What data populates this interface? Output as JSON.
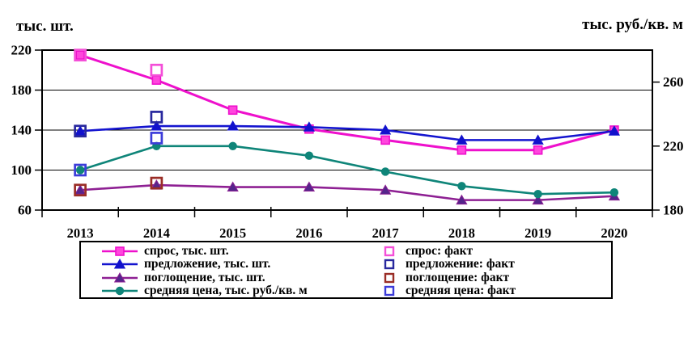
{
  "chart_data": {
    "type": "line",
    "categories": [
      "2013",
      "2014",
      "2015",
      "2016",
      "2017",
      "2018",
      "2019",
      "2020"
    ],
    "axis_left": {
      "title": "тыс. шт.",
      "min": 60,
      "max": 220,
      "ticks": [
        220,
        180,
        140,
        100,
        60
      ]
    },
    "axis_right": {
      "title": "тыс. руб./кв. м",
      "min": 180,
      "max": 280,
      "ticks": [
        260,
        220,
        180
      ]
    },
    "grid": "horizontal",
    "legend_position": "bottom-box",
    "series": [
      {
        "name": "спрос, тыс. шт.",
        "axis": "left",
        "marker": "square",
        "color": "#ee10cc",
        "marker_fill": "#ff46dd",
        "values": [
          215,
          190,
          160,
          141,
          130,
          120,
          120,
          140
        ]
      },
      {
        "name": "предложение, тыс. шт.",
        "axis": "left",
        "marker": "triangle",
        "color": "#1414cf",
        "marker_fill": "#1111cc",
        "values": [
          139,
          144,
          144,
          143,
          140,
          130,
          130,
          139
        ]
      },
      {
        "name": "поглощение, тыс. шт.",
        "axis": "left",
        "marker": "triangle",
        "color": "#8e2093",
        "marker_fill": "#55258b",
        "values": [
          80,
          85,
          83,
          83,
          80,
          70,
          70,
          74
        ]
      },
      {
        "name": "средняя цена, тыс. руб./кв. м",
        "axis": "right",
        "marker": "circle",
        "color": "#0f8579",
        "marker_fill": "#0f8579",
        "values": [
          205,
          220,
          220,
          214,
          204,
          195,
          190,
          191
        ]
      }
    ],
    "fact_series": [
      {
        "name": "спрос: факт",
        "axis": "left",
        "color": "#f44fd8",
        "values": [
          215,
          200
        ]
      },
      {
        "name": "предложение: факт",
        "axis": "left",
        "color": "#28289e",
        "values": [
          139,
          153
        ]
      },
      {
        "name": "поглощение: факт",
        "axis": "left",
        "color": "#9a2d26",
        "values": [
          80,
          87
        ]
      },
      {
        "name": "средняя цена: факт",
        "axis": "right",
        "color": "#3c3cd9",
        "values": [
          205,
          225
        ]
      }
    ]
  }
}
